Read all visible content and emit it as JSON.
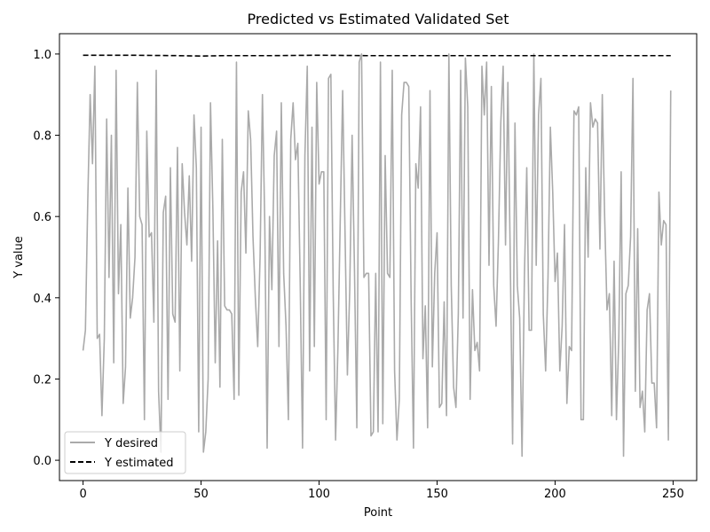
{
  "chart_data": {
    "type": "line",
    "title": "Predicted vs Estimated Validated Set",
    "xlabel": "Point",
    "ylabel": "Y value",
    "xlim": [
      -10,
      260
    ],
    "ylim": [
      -0.05,
      1.05
    ],
    "xticks": [
      0,
      50,
      100,
      150,
      200,
      250
    ],
    "xtick_labels": [
      "0",
      "50",
      "100",
      "150",
      "200",
      "250"
    ],
    "yticks": [
      0.0,
      0.2,
      0.4,
      0.6,
      0.8,
      1.0
    ],
    "ytick_labels": [
      "0.0",
      "0.2",
      "0.4",
      "0.6",
      "0.8",
      "1.0"
    ],
    "grid": false,
    "legend_position": "lower-left",
    "series": [
      {
        "name": "Y desired",
        "color": "#aaaaaa",
        "style": "solid",
        "x_start": 0,
        "x_step": 1,
        "values": [
          0.27,
          0.32,
          0.64,
          0.9,
          0.73,
          0.97,
          0.3,
          0.31,
          0.11,
          0.3,
          0.84,
          0.45,
          0.8,
          0.24,
          0.96,
          0.41,
          0.58,
          0.14,
          0.23,
          0.67,
          0.35,
          0.4,
          0.5,
          0.93,
          0.6,
          0.58,
          0.1,
          0.81,
          0.55,
          0.56,
          0.34,
          0.96,
          0.17,
          0.02,
          0.61,
          0.65,
          0.15,
          0.72,
          0.36,
          0.34,
          0.77,
          0.22,
          0.73,
          0.61,
          0.53,
          0.7,
          0.49,
          0.85,
          0.72,
          0.07,
          0.82,
          0.02,
          0.07,
          0.2,
          0.88,
          0.62,
          0.24,
          0.54,
          0.18,
          0.79,
          0.38,
          0.37,
          0.37,
          0.36,
          0.15,
          0.98,
          0.16,
          0.66,
          0.71,
          0.51,
          0.86,
          0.79,
          0.55,
          0.4,
          0.28,
          0.5,
          0.9,
          0.58,
          0.03,
          0.6,
          0.42,
          0.75,
          0.81,
          0.28,
          0.88,
          0.46,
          0.33,
          0.1,
          0.79,
          0.88,
          0.74,
          0.78,
          0.44,
          0.03,
          0.75,
          0.97,
          0.22,
          0.82,
          0.28,
          0.93,
          0.68,
          0.71,
          0.71,
          0.1,
          0.94,
          0.95,
          0.41,
          0.05,
          0.28,
          0.6,
          0.91,
          0.56,
          0.21,
          0.42,
          0.8,
          0.47,
          0.08,
          0.98,
          1.0,
          0.45,
          0.46,
          0.46,
          0.06,
          0.07,
          0.46,
          0.07,
          0.98,
          0.09,
          0.75,
          0.46,
          0.45,
          0.96,
          0.22,
          0.05,
          0.15,
          0.85,
          0.93,
          0.93,
          0.92,
          0.4,
          0.03,
          0.73,
          0.67,
          0.87,
          0.25,
          0.38,
          0.08,
          0.91,
          0.23,
          0.46,
          0.56,
          0.13,
          0.14,
          0.39,
          0.11,
          1.0,
          0.43,
          0.18,
          0.13,
          0.36,
          0.96,
          0.35,
          0.99,
          0.87,
          0.15,
          0.42,
          0.27,
          0.29,
          0.22,
          0.97,
          0.85,
          0.98,
          0.48,
          0.92,
          0.43,
          0.33,
          0.54,
          0.83,
          0.97,
          0.53,
          0.93,
          0.5,
          0.04,
          0.83,
          0.43,
          0.35,
          0.01,
          0.45,
          0.72,
          0.32,
          0.32,
          1.0,
          0.48,
          0.85,
          0.94,
          0.36,
          0.22,
          0.45,
          0.82,
          0.66,
          0.44,
          0.51,
          0.22,
          0.33,
          0.58,
          0.14,
          0.28,
          0.27,
          0.86,
          0.85,
          0.87,
          0.1,
          0.1,
          0.72,
          0.5,
          0.88,
          0.82,
          0.84,
          0.83,
          0.52,
          0.9,
          0.6,
          0.37,
          0.41,
          0.11,
          0.49,
          0.1,
          0.3,
          0.71,
          0.01,
          0.41,
          0.43,
          0.55,
          0.94,
          0.17,
          0.57,
          0.13,
          0.17,
          0.07,
          0.37,
          0.41,
          0.19,
          0.19,
          0.08,
          0.66,
          0.53,
          0.59,
          0.58,
          0.05,
          0.91
        ]
      },
      {
        "name": "Y estimated",
        "color": "#000000",
        "style": "dashed",
        "x": [
          0,
          20,
          40,
          50,
          60,
          80,
          100,
          120,
          140,
          160,
          180,
          200,
          220,
          240,
          249
        ],
        "values": [
          0.997,
          0.997,
          0.996,
          0.995,
          0.996,
          0.996,
          0.997,
          0.996,
          0.996,
          0.996,
          0.996,
          0.996,
          0.996,
          0.996,
          0.996
        ]
      }
    ]
  }
}
